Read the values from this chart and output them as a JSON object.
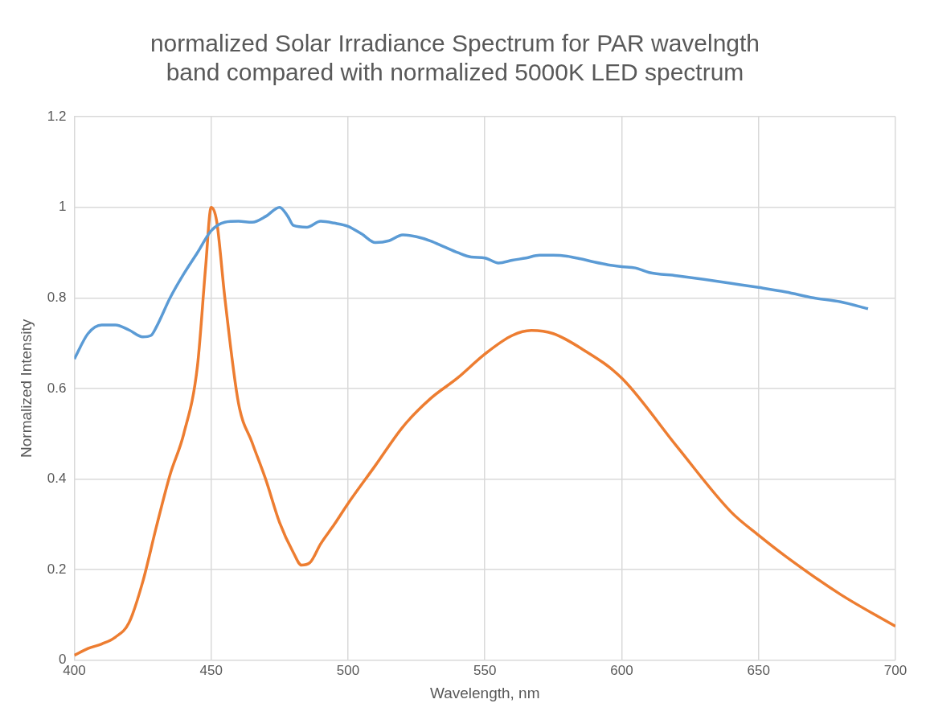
{
  "chart_data": {
    "type": "line",
    "title": "normalized Solar Irradiance Spectrum for PAR wavelngth band compared with normalized 5000K LED spectrum",
    "xlabel": "Wavelength, nm",
    "ylabel": "Normalized Intensity",
    "xlim": [
      400,
      700
    ],
    "xticks": [
      400,
      450,
      500,
      550,
      600,
      650,
      700
    ],
    "ylim": [
      0,
      1.2
    ],
    "yticks": [
      {
        "value": 0,
        "label": "0"
      },
      {
        "value": 0.2,
        "label": "0.2"
      },
      {
        "value": 0.4,
        "label": "0.4"
      },
      {
        "value": 0.6,
        "label": "0.6"
      },
      {
        "value": 0.8,
        "label": "0.8"
      },
      {
        "value": 1,
        "label": "1"
      },
      {
        "value": 1.2,
        "label": "1.2"
      }
    ],
    "grid": true,
    "legend": false,
    "marker": "none",
    "line_style": "solid",
    "series": [
      {
        "color": "#5b9bd5",
        "x": [
          400,
          405,
          410,
          415,
          420,
          425,
          428,
          430,
          435,
          440,
          445,
          450,
          455,
          460,
          465,
          470,
          475,
          478,
          480,
          485,
          490,
          495,
          500,
          505,
          510,
          515,
          520,
          525,
          530,
          535,
          540,
          545,
          550,
          555,
          560,
          565,
          570,
          575,
          580,
          585,
          590,
          595,
          600,
          605,
          610,
          620,
          630,
          640,
          650,
          660,
          670,
          680,
          690
        ],
        "values": [
          0.665,
          0.721,
          0.74,
          0.74,
          0.729,
          0.714,
          0.717,
          0.736,
          0.8,
          0.853,
          0.9,
          0.948,
          0.967,
          0.969,
          0.967,
          0.98,
          1.0,
          0.98,
          0.96,
          0.956,
          0.969,
          0.965,
          0.958,
          0.941,
          0.922,
          0.926,
          0.939,
          0.935,
          0.926,
          0.913,
          0.9,
          0.89,
          0.888,
          0.877,
          0.883,
          0.888,
          0.894,
          0.894,
          0.892,
          0.886,
          0.879,
          0.873,
          0.869,
          0.866,
          0.856,
          0.849,
          0.841,
          0.832,
          0.823,
          0.813,
          0.8,
          0.791,
          0.776
        ]
      },
      {
        "color": "#ed7d31",
        "x": [
          400,
          405,
          410,
          415,
          420,
          425,
          430,
          435,
          440,
          445,
          448,
          450,
          452,
          455,
          460,
          465,
          470,
          475,
          480,
          483,
          486,
          490,
          495,
          500,
          510,
          520,
          530,
          540,
          550,
          560,
          567,
          575,
          585,
          600,
          620,
          640,
          650,
          660,
          680,
          700
        ],
        "values": [
          0.011,
          0.026,
          0.036,
          0.051,
          0.083,
          0.173,
          0.295,
          0.41,
          0.5,
          0.65,
          0.87,
          1.0,
          0.97,
          0.8,
          0.567,
          0.48,
          0.398,
          0.304,
          0.238,
          0.21,
          0.215,
          0.257,
          0.3,
          0.346,
          0.43,
          0.515,
          0.577,
          0.623,
          0.676,
          0.717,
          0.728,
          0.721,
          0.689,
          0.623,
          0.473,
          0.327,
          0.276,
          0.229,
          0.145,
          0.075
        ]
      }
    ]
  }
}
